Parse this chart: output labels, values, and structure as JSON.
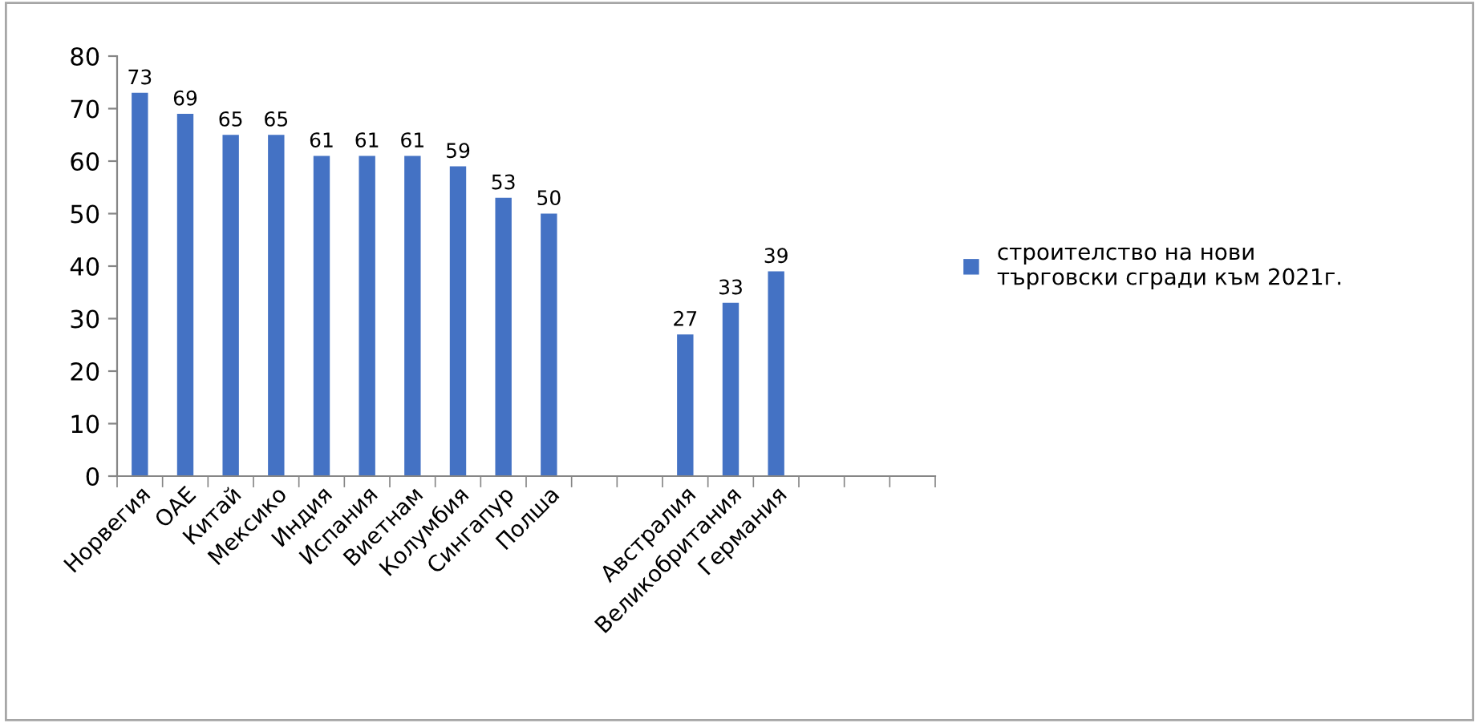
{
  "chart_data": {
    "type": "bar",
    "categories": [
      "Норвегия",
      "ОАЕ",
      "Китай",
      "Мексико",
      "Индия",
      "Испания",
      "Виетнам",
      "Колумбия",
      "Сингапур",
      "Полша",
      null,
      null,
      "Австралия",
      "Великобритания",
      "Германия",
      null,
      null,
      null
    ],
    "series": [
      {
        "name": "строителство на нови\nтърговски сгради към 2021г.",
        "color": "#4472c4",
        "values": [
          73,
          69,
          65,
          65,
          61,
          61,
          61,
          59,
          53,
          50,
          null,
          null,
          27,
          33,
          39,
          null,
          null,
          null
        ]
      }
    ],
    "ylim": [
      0,
      80
    ],
    "yticks": [
      0,
      10,
      20,
      30,
      40,
      50,
      60,
      70,
      80
    ],
    "data_labels": true,
    "legend": "right",
    "grid": false
  }
}
